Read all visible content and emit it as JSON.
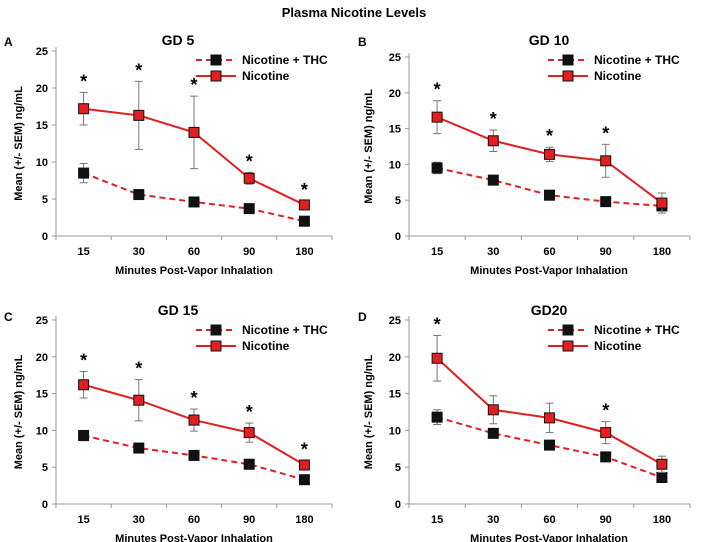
{
  "figure_title": "Plasma Nicotine Levels",
  "colors": {
    "nicotine_thc": "#e02020",
    "nicotine": "#e02020",
    "marker_thc": "#111111",
    "marker_nicotine": "#e02020",
    "error_bar": "#777777",
    "axis": "#999999"
  },
  "chart_data": [
    {
      "type": "line",
      "panel": "A",
      "title": "GD 5",
      "xlabel": "Minutes Post-Vapor Inhalation",
      "ylabel": "Mean (+/- SEM) ng/mL",
      "categories": [
        "15",
        "30",
        "60",
        "90",
        "180"
      ],
      "ylim": [
        0,
        25
      ],
      "yticks": [
        0,
        5,
        10,
        15,
        20,
        25
      ],
      "legend": "top-right",
      "series": [
        {
          "name": "Nicotine + THC",
          "values": [
            8.5,
            5.6,
            4.6,
            3.7,
            2.0
          ],
          "sem": [
            1.3,
            0.6,
            0.5,
            0.4,
            0.3
          ]
        },
        {
          "name": "Nicotine",
          "values": [
            17.2,
            16.3,
            14.0,
            7.8,
            4.2
          ],
          "sem": [
            2.2,
            4.6,
            4.9,
            0.8,
            0.5
          ]
        }
      ],
      "significance": [
        "*",
        "*",
        "*",
        "*",
        "*"
      ]
    },
    {
      "type": "line",
      "panel": "B",
      "title": "GD 10",
      "xlabel": "Minutes Post-Vapor Inhalation",
      "ylabel": "Mean (+/- SEM) ng/mL",
      "categories": [
        "15",
        "30",
        "60",
        "90",
        "180"
      ],
      "ylim": [
        0,
        25
      ],
      "yticks": [
        0,
        5,
        10,
        15,
        20,
        25
      ],
      "legend": "top-right",
      "series": [
        {
          "name": "Nicotine + THC",
          "values": [
            9.5,
            7.8,
            5.7,
            4.8,
            4.2
          ],
          "sem": [
            0.8,
            0.4,
            0.4,
            0.4,
            0.4
          ]
        },
        {
          "name": "Nicotine",
          "values": [
            16.6,
            13.3,
            11.4,
            10.5,
            4.6
          ],
          "sem": [
            2.3,
            1.5,
            1.0,
            2.3,
            1.4
          ]
        }
      ],
      "significance": [
        "*",
        "*",
        "*",
        "*",
        ""
      ]
    },
    {
      "type": "line",
      "panel": "C",
      "title": "GD 15",
      "xlabel": "Minutes Post-Vapor Inhalation",
      "ylabel": "Mean (+/- SEM) ng/mL",
      "categories": [
        "15",
        "30",
        "60",
        "90",
        "180"
      ],
      "ylim": [
        0,
        25
      ],
      "yticks": [
        0,
        5,
        10,
        15,
        20,
        25
      ],
      "legend": "top-right",
      "series": [
        {
          "name": "Nicotine + THC",
          "values": [
            9.3,
            7.6,
            6.6,
            5.4,
            3.3
          ],
          "sem": [
            0.7,
            0.4,
            0.4,
            0.4,
            0.3
          ]
        },
        {
          "name": "Nicotine",
          "values": [
            16.2,
            14.1,
            11.4,
            9.7,
            5.3
          ],
          "sem": [
            1.8,
            2.8,
            1.5,
            1.3,
            0.6
          ]
        }
      ],
      "significance": [
        "*",
        "*",
        "*",
        "*",
        "*"
      ]
    },
    {
      "type": "line",
      "panel": "D",
      "title": "GD20",
      "xlabel": "Minutes Post-Vapor Inhalation",
      "ylabel": "Mean (+/- SEM) ng/mL",
      "categories": [
        "15",
        "30",
        "60",
        "90",
        "180"
      ],
      "ylim": [
        0,
        25
      ],
      "yticks": [
        0,
        5,
        10,
        15,
        20,
        25
      ],
      "legend": "top-right",
      "series": [
        {
          "name": "Nicotine + THC",
          "values": [
            11.8,
            9.6,
            8.0,
            6.4,
            3.6
          ],
          "sem": [
            1.0,
            0.4,
            0.4,
            0.4,
            0.4
          ]
        },
        {
          "name": "Nicotine",
          "values": [
            19.8,
            12.8,
            11.7,
            9.7,
            5.4
          ],
          "sem": [
            3.1,
            1.9,
            2.0,
            1.5,
            1.1
          ]
        }
      ],
      "significance": [
        "*",
        "",
        "",
        "*",
        ""
      ]
    }
  ]
}
